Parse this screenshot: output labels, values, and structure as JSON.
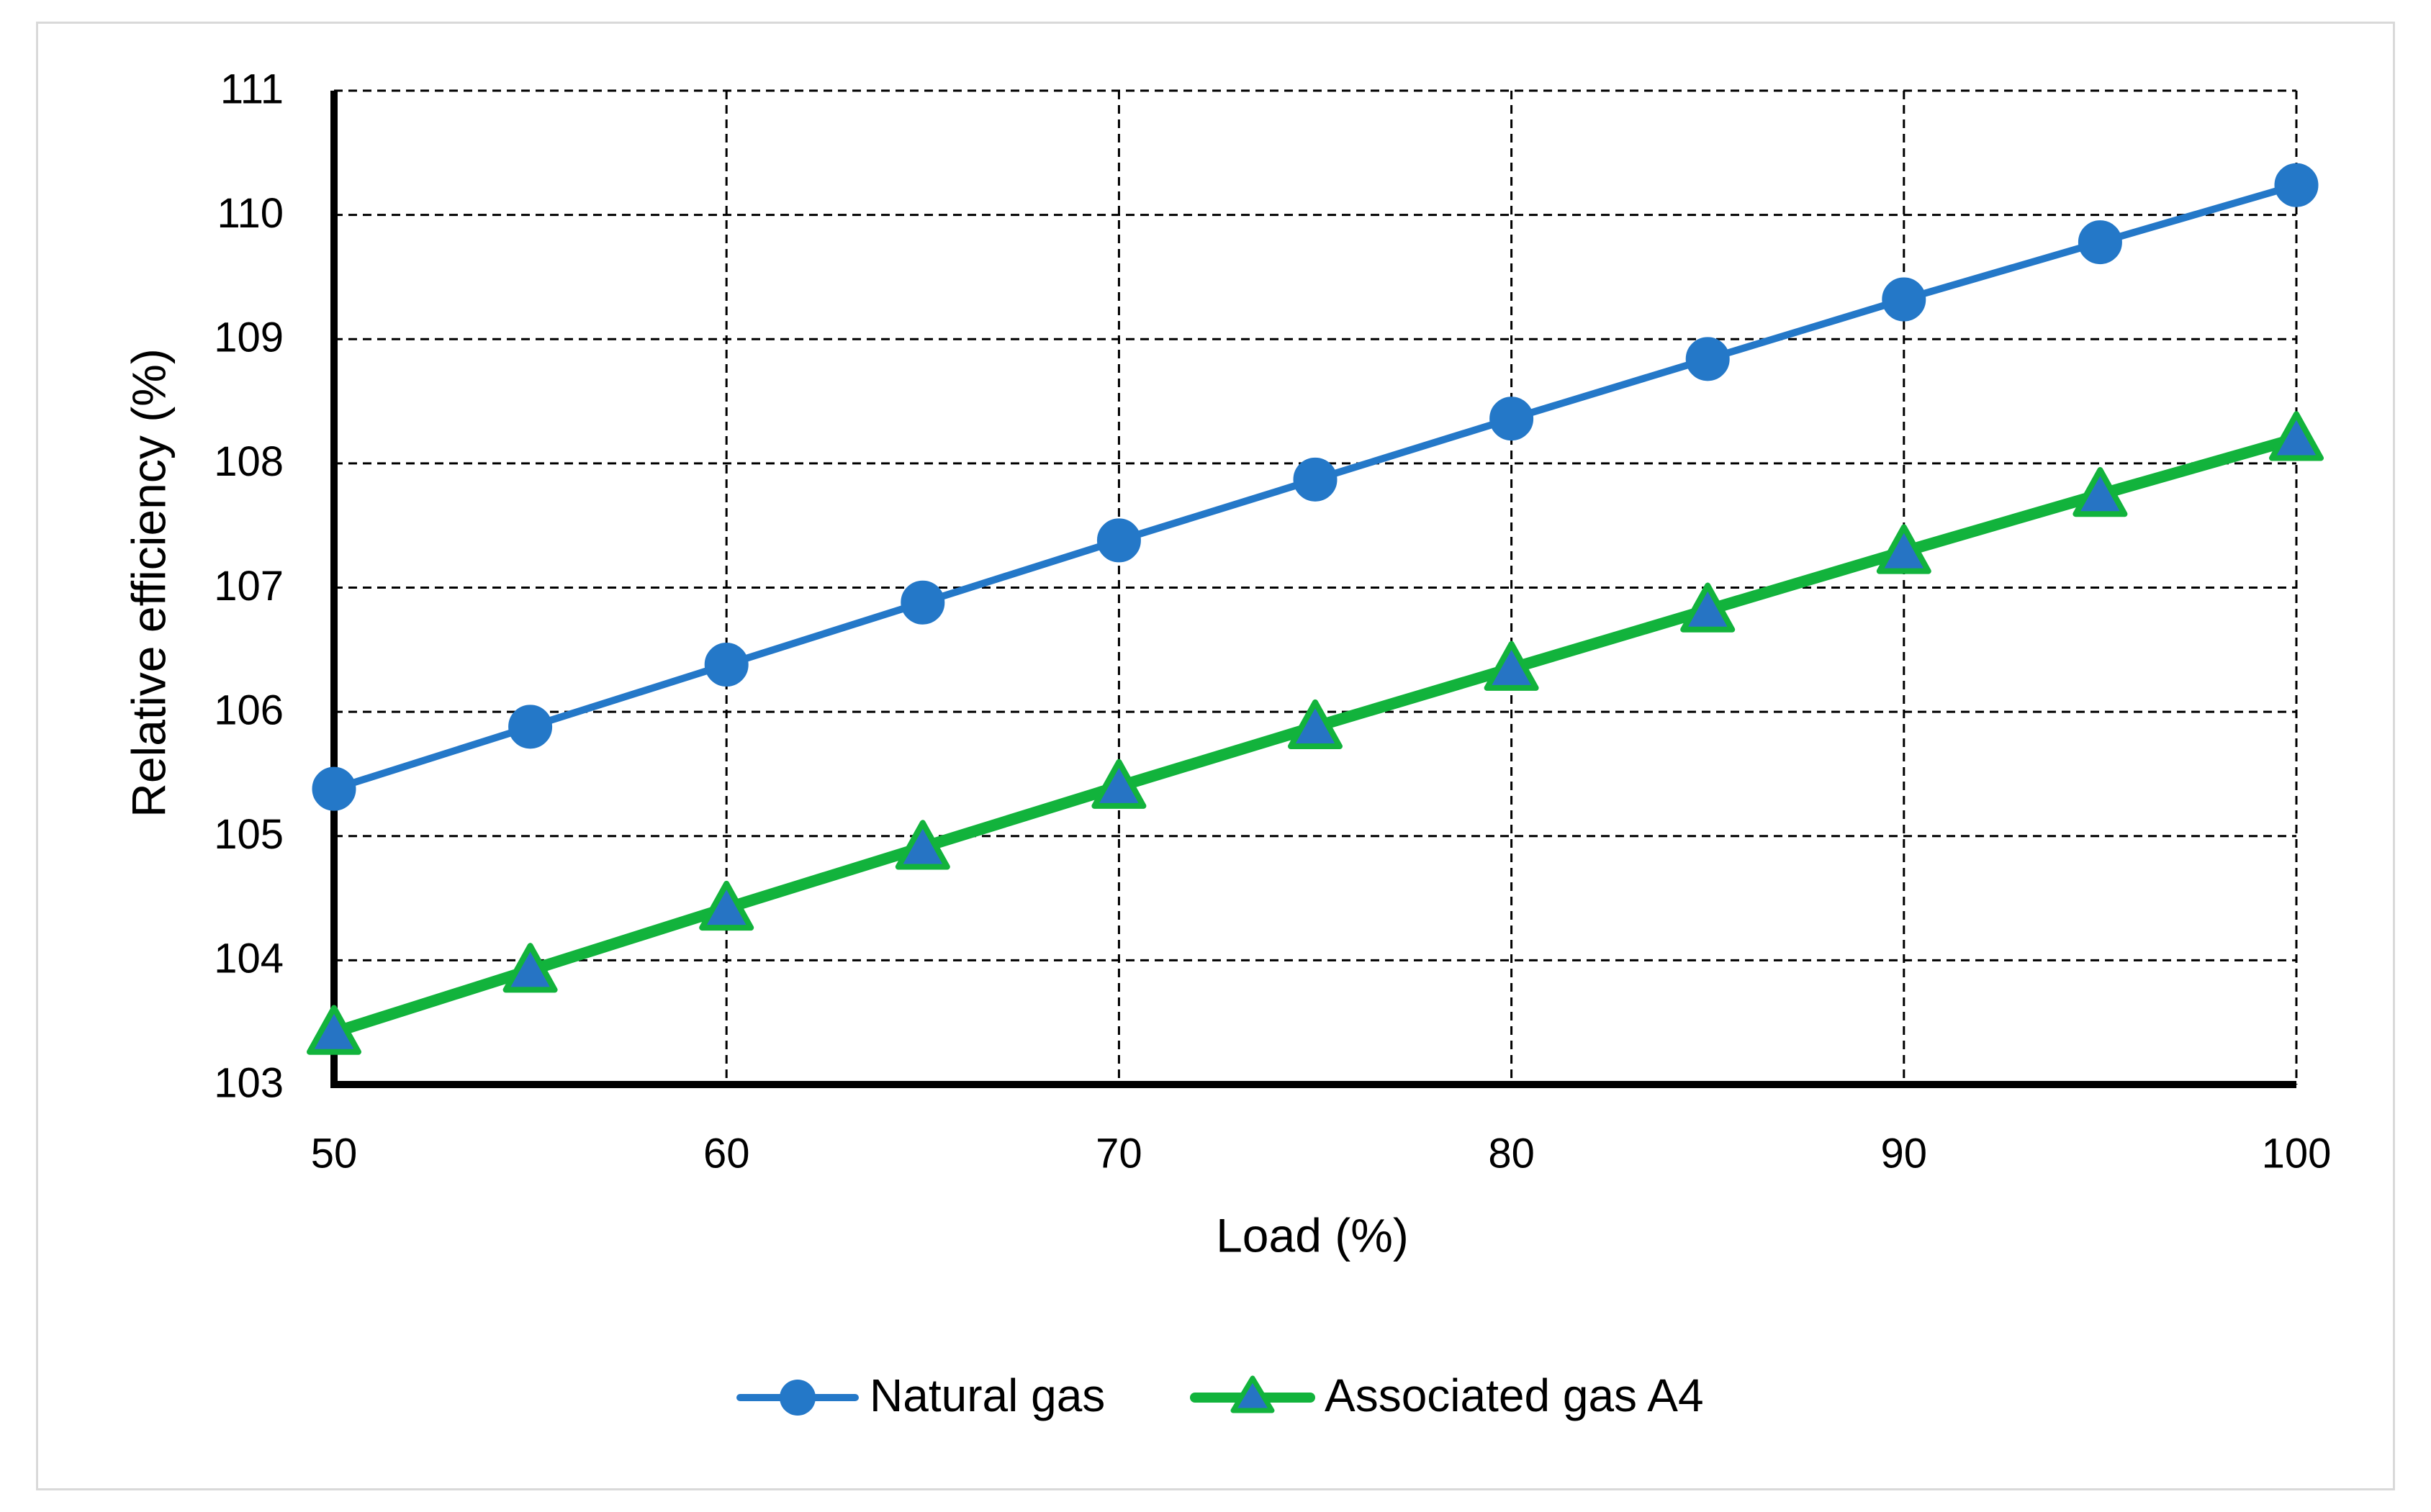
{
  "chart_data": {
    "type": "line",
    "title": "",
    "xlabel": "Load (%)",
    "ylabel": "Relative efficiency (%)",
    "x": [
      50,
      55,
      60,
      65,
      70,
      75,
      80,
      85,
      90,
      95,
      100
    ],
    "xlim": [
      50,
      100
    ],
    "ylim": [
      103,
      111
    ],
    "xticks": [
      50,
      60,
      70,
      80,
      90,
      100
    ],
    "yticks": [
      103,
      104,
      105,
      106,
      107,
      108,
      109,
      110,
      111
    ],
    "x_tick_labels": [
      "50",
      "60",
      "70",
      "80",
      "90",
      "100"
    ],
    "y_tick_labels": [
      "103",
      "104",
      "105",
      "106",
      "107",
      "108",
      "109",
      "110",
      "111"
    ],
    "grid": true,
    "legend_position": "bottom-center",
    "series": [
      {
        "name": "Natural gas",
        "marker": "circle",
        "color": "#2478c8",
        "marker_fill": "#2478c8",
        "values": [
          105.38,
          105.88,
          106.38,
          106.88,
          107.38,
          107.87,
          108.36,
          108.84,
          109.32,
          109.78,
          110.24
        ]
      },
      {
        "name": "Associated gas A4",
        "marker": "triangle",
        "color": "#12b33c",
        "marker_fill": "#2674c4",
        "values": [
          103.42,
          103.92,
          104.42,
          104.91,
          105.4,
          105.88,
          106.35,
          106.82,
          107.29,
          107.75,
          108.2
        ]
      }
    ]
  }
}
